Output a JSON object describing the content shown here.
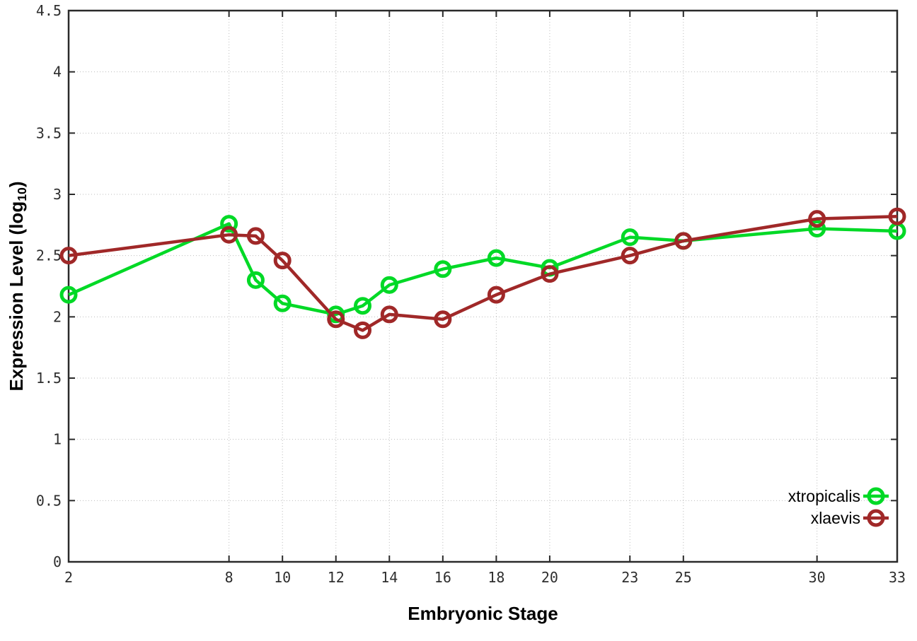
{
  "chart_data": {
    "type": "line",
    "title": "",
    "xlabel": "Embryonic Stage",
    "ylabel": {
      "prefix": "Expression Level (log",
      "sub": "10",
      "suffix": ")"
    },
    "xlim": [
      2,
      33
    ],
    "ylim": [
      0,
      4.5
    ],
    "x_ticks": [
      2,
      8,
      10,
      12,
      14,
      16,
      18,
      20,
      23,
      25,
      30,
      33
    ],
    "y_ticks": [
      0,
      0.5,
      1,
      1.5,
      2,
      2.5,
      3,
      3.5,
      4,
      4.5
    ],
    "y_tick_labels": [
      "0",
      "0.5",
      "1",
      "1.5",
      "2",
      "2.5",
      "3",
      "3.5",
      "4",
      "4.5"
    ],
    "grid": true,
    "legend_position": "inside bottom-right",
    "marker": "open-circle",
    "x": [
      2,
      8,
      9,
      10,
      12,
      13,
      14,
      16,
      18,
      20,
      23,
      25,
      30,
      33
    ],
    "series": [
      {
        "name": "xtropicalis",
        "color": "#00d926",
        "values": [
          2.18,
          2.76,
          2.3,
          2.11,
          2.02,
          2.09,
          2.26,
          2.39,
          2.48,
          2.4,
          2.65,
          2.62,
          2.72,
          2.7
        ]
      },
      {
        "name": "xlaevis",
        "color": "#a02828",
        "values": [
          2.5,
          2.67,
          2.66,
          2.46,
          1.98,
          1.89,
          2.02,
          1.98,
          2.18,
          2.35,
          2.5,
          2.62,
          2.8,
          2.82
        ]
      }
    ],
    "axis_color": "#2a2a2a",
    "grid_color": "#bcbcbc",
    "tick_label_color": "#2e2e2e"
  }
}
